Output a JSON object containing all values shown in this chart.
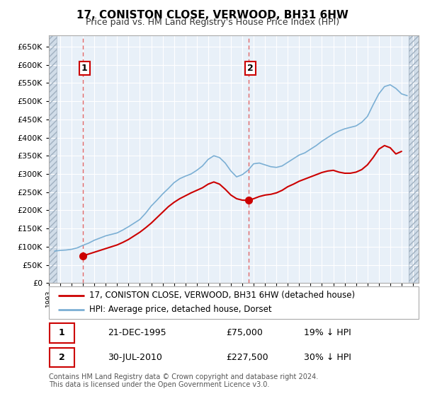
{
  "title": "17, CONISTON CLOSE, VERWOOD, BH31 6HW",
  "subtitle": "Price paid vs. HM Land Registry's House Price Index (HPI)",
  "xlim_start": 1993.0,
  "xlim_end": 2025.5,
  "ylim": [
    0,
    680000
  ],
  "yticks": [
    0,
    50000,
    100000,
    150000,
    200000,
    250000,
    300000,
    350000,
    400000,
    450000,
    500000,
    550000,
    600000,
    650000
  ],
  "sale1_x": 1995.97,
  "sale1_y": 75000,
  "sale1_label": "1",
  "sale1_date": "21-DEC-1995",
  "sale1_price": "£75,000",
  "sale1_hpi": "19% ↓ HPI",
  "sale2_x": 2010.57,
  "sale2_y": 227500,
  "sale2_label": "2",
  "sale2_date": "30-JUL-2010",
  "sale2_price": "£227,500",
  "sale2_hpi": "30% ↓ HPI",
  "legend_label1": "17, CONISTON CLOSE, VERWOOD, BH31 6HW (detached house)",
  "legend_label2": "HPI: Average price, detached house, Dorset",
  "footer": "Contains HM Land Registry data © Crown copyright and database right 2024.\nThis data is licensed under the Open Government Licence v3.0.",
  "hpi_color": "#7bafd4",
  "sale_color": "#cc0000",
  "bg_color": "#e8f0f8",
  "hatch_bg": "#d0dce8",
  "grid_color": "#ffffff",
  "hpi_x": [
    1993.5,
    1994.0,
    1994.5,
    1995.0,
    1995.5,
    1996.0,
    1996.5,
    1997.0,
    1997.5,
    1998.0,
    1998.5,
    1999.0,
    1999.5,
    2000.0,
    2000.5,
    2001.0,
    2001.5,
    2002.0,
    2002.5,
    2003.0,
    2003.5,
    2004.0,
    2004.5,
    2005.0,
    2005.5,
    2006.0,
    2006.5,
    2007.0,
    2007.5,
    2008.0,
    2008.5,
    2009.0,
    2009.5,
    2010.0,
    2010.5,
    2011.0,
    2011.5,
    2012.0,
    2012.5,
    2013.0,
    2013.5,
    2014.0,
    2014.5,
    2015.0,
    2015.5,
    2016.0,
    2016.5,
    2017.0,
    2017.5,
    2018.0,
    2018.5,
    2019.0,
    2019.5,
    2020.0,
    2020.5,
    2021.0,
    2021.5,
    2022.0,
    2022.5,
    2023.0,
    2023.5,
    2024.0,
    2024.5
  ],
  "hpi_y": [
    88000,
    90000,
    91000,
    93000,
    97000,
    104000,
    110000,
    118000,
    124000,
    130000,
    134000,
    138000,
    146000,
    155000,
    165000,
    175000,
    192000,
    212000,
    228000,
    245000,
    260000,
    276000,
    287000,
    294000,
    300000,
    310000,
    322000,
    340000,
    350000,
    345000,
    330000,
    308000,
    292000,
    298000,
    310000,
    328000,
    330000,
    325000,
    320000,
    318000,
    322000,
    332000,
    342000,
    352000,
    358000,
    368000,
    378000,
    390000,
    400000,
    410000,
    418000,
    424000,
    428000,
    432000,
    442000,
    458000,
    490000,
    520000,
    540000,
    545000,
    535000,
    520000,
    515000
  ],
  "red_x": [
    1995.97,
    1996.5,
    1997.0,
    1997.5,
    1998.0,
    1998.5,
    1999.0,
    1999.5,
    2000.0,
    2000.5,
    2001.0,
    2001.5,
    2002.0,
    2002.5,
    2003.0,
    2003.5,
    2004.0,
    2004.5,
    2005.0,
    2005.5,
    2006.0,
    2006.5,
    2007.0,
    2007.5,
    2008.0,
    2008.5,
    2009.0,
    2009.5,
    2010.0,
    2010.57
  ],
  "red_y": [
    75000,
    80000,
    85000,
    90000,
    95000,
    100000,
    105000,
    112000,
    120000,
    130000,
    140000,
    152000,
    165000,
    180000,
    195000,
    210000,
    222000,
    232000,
    240000,
    248000,
    255000,
    262000,
    272000,
    278000,
    272000,
    258000,
    242000,
    232000,
    228000,
    227500
  ],
  "red2_x": [
    2010.57,
    2011.0,
    2011.5,
    2012.0,
    2012.5,
    2013.0,
    2013.5,
    2014.0,
    2014.5,
    2015.0,
    2015.5,
    2016.0,
    2016.5,
    2017.0,
    2017.5,
    2018.0,
    2018.5,
    2019.0,
    2019.5,
    2020.0,
    2020.5,
    2021.0,
    2021.5,
    2022.0,
    2022.5,
    2023.0,
    2023.5,
    2024.0
  ],
  "red2_y": [
    227500,
    232000,
    238000,
    242000,
    244000,
    248000,
    255000,
    265000,
    272000,
    280000,
    286000,
    292000,
    298000,
    304000,
    308000,
    310000,
    305000,
    302000,
    302000,
    305000,
    312000,
    325000,
    345000,
    368000,
    378000,
    372000,
    355000,
    362000
  ]
}
